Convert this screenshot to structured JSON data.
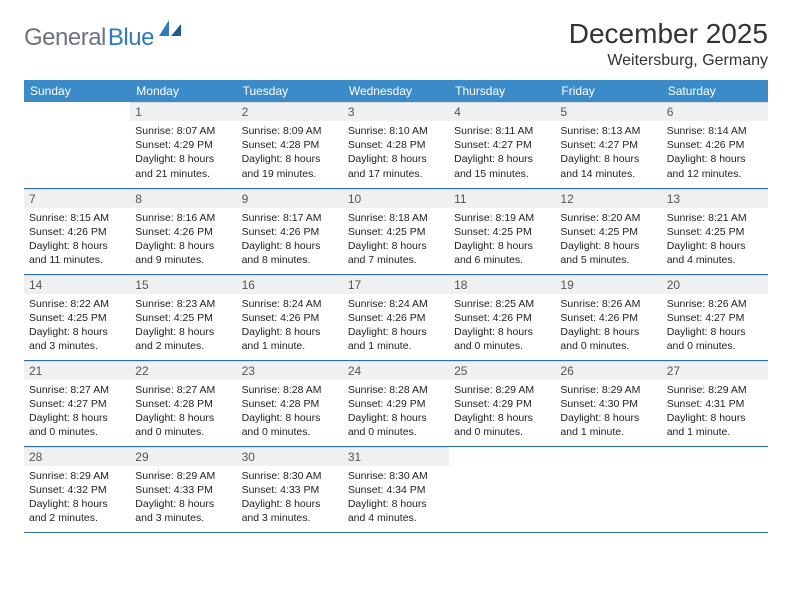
{
  "logo": {
    "part1": "General",
    "part2": "Blue"
  },
  "title": "December 2025",
  "location": "Weitersburg, Germany",
  "colors": {
    "header_bg": "#3b8bc9",
    "header_text": "#ffffff",
    "daynum_bg": "#eef0f1",
    "row_border": "#2f6ea5",
    "logo_gray": "#6b7280",
    "logo_blue": "#2f7bbf"
  },
  "weekdays": [
    "Sunday",
    "Monday",
    "Tuesday",
    "Wednesday",
    "Thursday",
    "Friday",
    "Saturday"
  ],
  "weeks": [
    [
      {
        "n": "",
        "sr": "",
        "ss": "",
        "dl": ""
      },
      {
        "n": "1",
        "sr": "Sunrise: 8:07 AM",
        "ss": "Sunset: 4:29 PM",
        "dl": "Daylight: 8 hours and 21 minutes."
      },
      {
        "n": "2",
        "sr": "Sunrise: 8:09 AM",
        "ss": "Sunset: 4:28 PM",
        "dl": "Daylight: 8 hours and 19 minutes."
      },
      {
        "n": "3",
        "sr": "Sunrise: 8:10 AM",
        "ss": "Sunset: 4:28 PM",
        "dl": "Daylight: 8 hours and 17 minutes."
      },
      {
        "n": "4",
        "sr": "Sunrise: 8:11 AM",
        "ss": "Sunset: 4:27 PM",
        "dl": "Daylight: 8 hours and 15 minutes."
      },
      {
        "n": "5",
        "sr": "Sunrise: 8:13 AM",
        "ss": "Sunset: 4:27 PM",
        "dl": "Daylight: 8 hours and 14 minutes."
      },
      {
        "n": "6",
        "sr": "Sunrise: 8:14 AM",
        "ss": "Sunset: 4:26 PM",
        "dl": "Daylight: 8 hours and 12 minutes."
      }
    ],
    [
      {
        "n": "7",
        "sr": "Sunrise: 8:15 AM",
        "ss": "Sunset: 4:26 PM",
        "dl": "Daylight: 8 hours and 11 minutes."
      },
      {
        "n": "8",
        "sr": "Sunrise: 8:16 AM",
        "ss": "Sunset: 4:26 PM",
        "dl": "Daylight: 8 hours and 9 minutes."
      },
      {
        "n": "9",
        "sr": "Sunrise: 8:17 AM",
        "ss": "Sunset: 4:26 PM",
        "dl": "Daylight: 8 hours and 8 minutes."
      },
      {
        "n": "10",
        "sr": "Sunrise: 8:18 AM",
        "ss": "Sunset: 4:25 PM",
        "dl": "Daylight: 8 hours and 7 minutes."
      },
      {
        "n": "11",
        "sr": "Sunrise: 8:19 AM",
        "ss": "Sunset: 4:25 PM",
        "dl": "Daylight: 8 hours and 6 minutes."
      },
      {
        "n": "12",
        "sr": "Sunrise: 8:20 AM",
        "ss": "Sunset: 4:25 PM",
        "dl": "Daylight: 8 hours and 5 minutes."
      },
      {
        "n": "13",
        "sr": "Sunrise: 8:21 AM",
        "ss": "Sunset: 4:25 PM",
        "dl": "Daylight: 8 hours and 4 minutes."
      }
    ],
    [
      {
        "n": "14",
        "sr": "Sunrise: 8:22 AM",
        "ss": "Sunset: 4:25 PM",
        "dl": "Daylight: 8 hours and 3 minutes."
      },
      {
        "n": "15",
        "sr": "Sunrise: 8:23 AM",
        "ss": "Sunset: 4:25 PM",
        "dl": "Daylight: 8 hours and 2 minutes."
      },
      {
        "n": "16",
        "sr": "Sunrise: 8:24 AM",
        "ss": "Sunset: 4:26 PM",
        "dl": "Daylight: 8 hours and 1 minute."
      },
      {
        "n": "17",
        "sr": "Sunrise: 8:24 AM",
        "ss": "Sunset: 4:26 PM",
        "dl": "Daylight: 8 hours and 1 minute."
      },
      {
        "n": "18",
        "sr": "Sunrise: 8:25 AM",
        "ss": "Sunset: 4:26 PM",
        "dl": "Daylight: 8 hours and 0 minutes."
      },
      {
        "n": "19",
        "sr": "Sunrise: 8:26 AM",
        "ss": "Sunset: 4:26 PM",
        "dl": "Daylight: 8 hours and 0 minutes."
      },
      {
        "n": "20",
        "sr": "Sunrise: 8:26 AM",
        "ss": "Sunset: 4:27 PM",
        "dl": "Daylight: 8 hours and 0 minutes."
      }
    ],
    [
      {
        "n": "21",
        "sr": "Sunrise: 8:27 AM",
        "ss": "Sunset: 4:27 PM",
        "dl": "Daylight: 8 hours and 0 minutes."
      },
      {
        "n": "22",
        "sr": "Sunrise: 8:27 AM",
        "ss": "Sunset: 4:28 PM",
        "dl": "Daylight: 8 hours and 0 minutes."
      },
      {
        "n": "23",
        "sr": "Sunrise: 8:28 AM",
        "ss": "Sunset: 4:28 PM",
        "dl": "Daylight: 8 hours and 0 minutes."
      },
      {
        "n": "24",
        "sr": "Sunrise: 8:28 AM",
        "ss": "Sunset: 4:29 PM",
        "dl": "Daylight: 8 hours and 0 minutes."
      },
      {
        "n": "25",
        "sr": "Sunrise: 8:29 AM",
        "ss": "Sunset: 4:29 PM",
        "dl": "Daylight: 8 hours and 0 minutes."
      },
      {
        "n": "26",
        "sr": "Sunrise: 8:29 AM",
        "ss": "Sunset: 4:30 PM",
        "dl": "Daylight: 8 hours and 1 minute."
      },
      {
        "n": "27",
        "sr": "Sunrise: 8:29 AM",
        "ss": "Sunset: 4:31 PM",
        "dl": "Daylight: 8 hours and 1 minute."
      }
    ],
    [
      {
        "n": "28",
        "sr": "Sunrise: 8:29 AM",
        "ss": "Sunset: 4:32 PM",
        "dl": "Daylight: 8 hours and 2 minutes."
      },
      {
        "n": "29",
        "sr": "Sunrise: 8:29 AM",
        "ss": "Sunset: 4:33 PM",
        "dl": "Daylight: 8 hours and 3 minutes."
      },
      {
        "n": "30",
        "sr": "Sunrise: 8:30 AM",
        "ss": "Sunset: 4:33 PM",
        "dl": "Daylight: 8 hours and 3 minutes."
      },
      {
        "n": "31",
        "sr": "Sunrise: 8:30 AM",
        "ss": "Sunset: 4:34 PM",
        "dl": "Daylight: 8 hours and 4 minutes."
      },
      {
        "n": "",
        "sr": "",
        "ss": "",
        "dl": ""
      },
      {
        "n": "",
        "sr": "",
        "ss": "",
        "dl": ""
      },
      {
        "n": "",
        "sr": "",
        "ss": "",
        "dl": ""
      }
    ]
  ]
}
